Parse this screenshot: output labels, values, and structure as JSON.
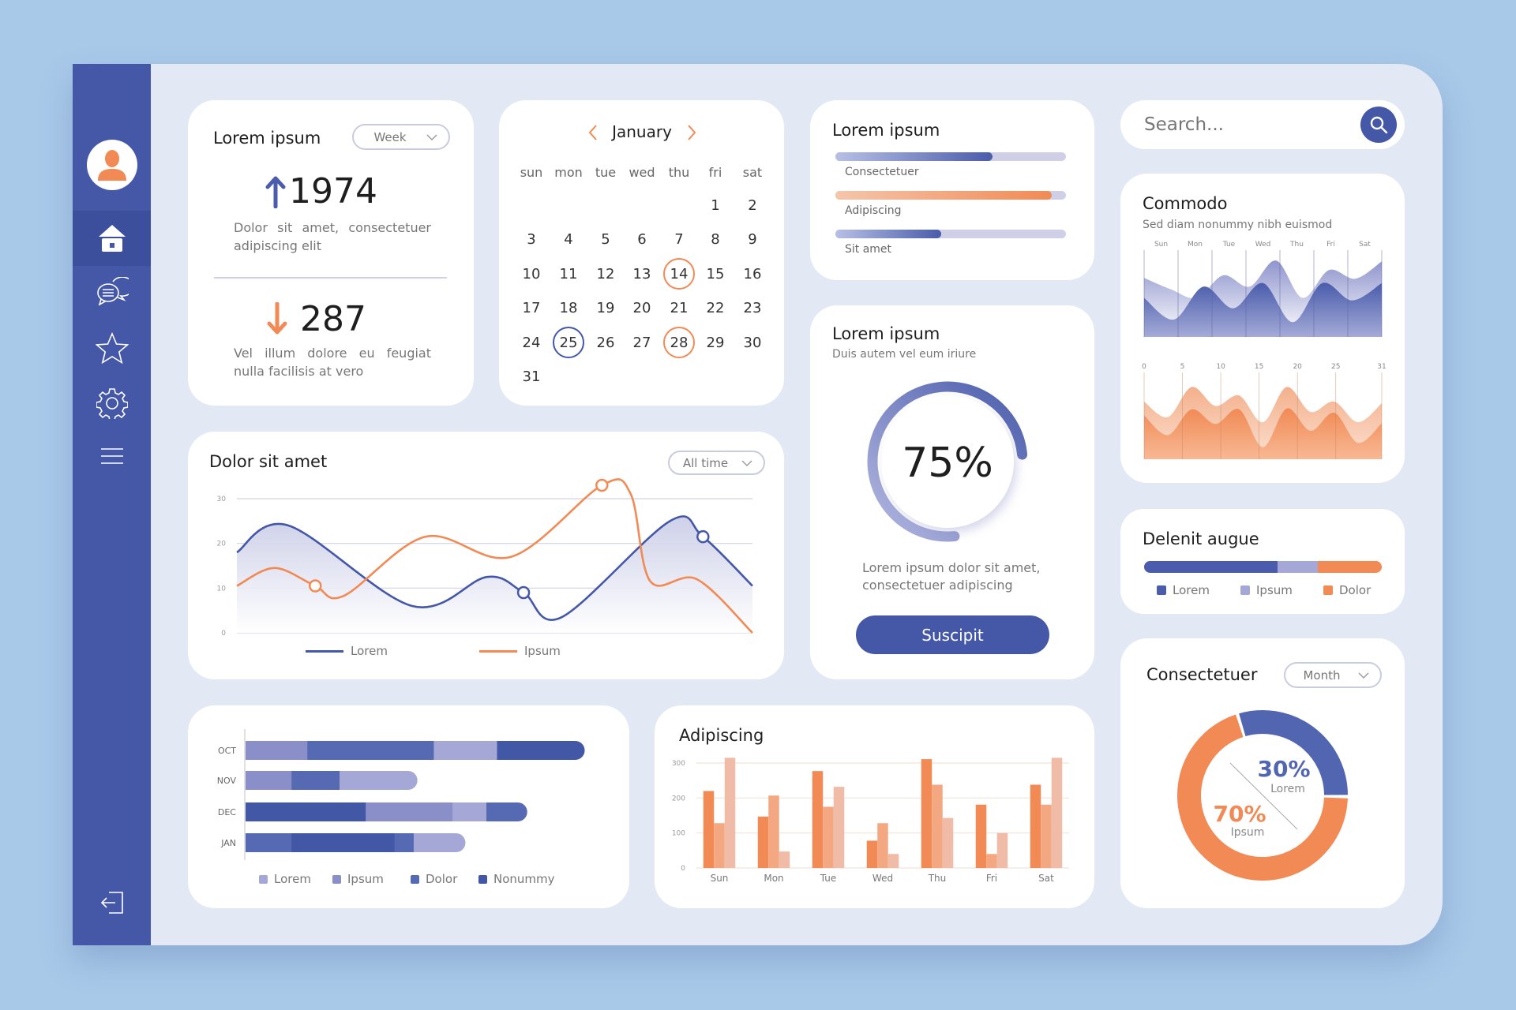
{
  "colors": {
    "primary": "#4558a7",
    "accent": "#f18a55",
    "background": "#a9c9e9",
    "panel": "#e2e8f4"
  },
  "sidebar": {
    "items": [
      {
        "name": "home",
        "icon": "home-icon",
        "active": true
      },
      {
        "name": "messages",
        "icon": "chat-icon"
      },
      {
        "name": "favorites",
        "icon": "star-icon"
      },
      {
        "name": "settings",
        "icon": "gear-icon"
      },
      {
        "name": "menu",
        "icon": "menu-icon"
      }
    ],
    "logout_icon": "logout-icon",
    "avatar_icon": "user-avatar-icon"
  },
  "stats_card": {
    "title": "Lorem ipsum",
    "dropdown": "Week",
    "up": {
      "value": "1974",
      "text": "Dolor sit amet, consectetuer adipiscing elit",
      "icon": "arrow-up-icon"
    },
    "down": {
      "value": "287",
      "text": "Vel illum dolore eu feugiat nulla facilisis at vero",
      "icon": "arrow-down-icon"
    }
  },
  "calendar": {
    "month": "January",
    "weekdays": [
      "sun",
      "mon",
      "tue",
      "wed",
      "thu",
      "fri",
      "sat"
    ],
    "weeks": [
      [
        null,
        null,
        null,
        null,
        null,
        1,
        2
      ],
      [
        3,
        4,
        5,
        6,
        7,
        8,
        9
      ],
      [
        10,
        11,
        12,
        13,
        14,
        15,
        16
      ],
      [
        17,
        18,
        19,
        20,
        21,
        22,
        23
      ],
      [
        24,
        25,
        26,
        27,
        28,
        29,
        30
      ],
      [
        31,
        null,
        null,
        null,
        null,
        null,
        null
      ]
    ],
    "highlighted": [
      {
        "day": 14,
        "color": "#f18a55"
      },
      {
        "day": 25,
        "color": "#4558a7"
      },
      {
        "day": 28,
        "color": "#f18a55"
      }
    ]
  },
  "progress_card": {
    "title": "Lorem ipsum",
    "items": [
      {
        "label": "Consectetuer",
        "value": 68,
        "from": "#b7c0e4",
        "to": "#4a5cab"
      },
      {
        "label": "Adipiscing",
        "value": 94,
        "from": "#f5c6ab",
        "to": "#f18a55"
      },
      {
        "label": "Sit amet",
        "value": 46,
        "from": "#b7c0e4",
        "to": "#4a5cab"
      }
    ]
  },
  "search": {
    "placeholder": "Search..."
  },
  "commodo": {
    "title": "Commodo",
    "subtitle": "Sed diam nonummy nibh euismod",
    "top_labels": [
      "Sun",
      "Mon",
      "Tue",
      "Wed",
      "Thu",
      "Fri",
      "Sat"
    ],
    "top_back": [
      68,
      55,
      45,
      71,
      58,
      88,
      45,
      77,
      67,
      87
    ],
    "top_front": [
      45,
      20,
      58,
      33,
      62,
      17,
      62,
      42,
      62
    ],
    "bottom_labels": [
      "0",
      "5",
      "10",
      "15",
      "20",
      "25",
      "31"
    ],
    "bottom_back": [
      67,
      49,
      84,
      62,
      74,
      43,
      84,
      55,
      67,
      43,
      65
    ],
    "bottom_front": [
      51,
      28,
      58,
      41,
      58,
      14,
      59,
      33,
      54,
      19,
      42
    ]
  },
  "line_chart": {
    "title": "Dolor sit amet",
    "dropdown": "All time",
    "chart_data": {
      "type": "line",
      "ylim": [
        0,
        30
      ],
      "yticks": [
        "0",
        "10",
        "20",
        "30"
      ],
      "grid": true,
      "legend": "bottom",
      "series": [
        {
          "name": "Lorem",
          "color": "#4558a7",
          "points": [
            [
              0,
              18
            ],
            [
              10,
              24
            ],
            [
              34,
              6
            ],
            [
              48.5,
              12.5
            ],
            [
              55.6,
              9
            ],
            [
              63,
              3.5
            ],
            [
              84,
              25
            ],
            [
              90.4,
              21.5
            ],
            [
              100,
              10.5
            ]
          ],
          "markers": [
            4,
            7
          ]
        },
        {
          "name": "Ipsum",
          "color": "#f18a55",
          "points": [
            [
              0,
              10.5
            ],
            [
              7.3,
              14.5
            ],
            [
              15.2,
              10.5
            ],
            [
              20.8,
              8.3
            ],
            [
              36.6,
              21.5
            ],
            [
              53.2,
              17
            ],
            [
              70.8,
              33
            ],
            [
              76.4,
              31
            ],
            [
              80.2,
              11.5
            ],
            [
              89.2,
              12
            ],
            [
              100,
              0
            ]
          ],
          "markers": [
            2,
            6
          ]
        }
      ]
    }
  },
  "gauge_card": {
    "title": "Lorem ipsum",
    "subtitle": "Duis autem vel eum iriure",
    "value": 75,
    "value_label": "75%",
    "text": "Lorem ipsum dolor sit amet, consectetuer adipiscing",
    "button": "Suscipit"
  },
  "delenit": {
    "title": "Delenit augue",
    "segments": [
      {
        "name": "Lorem",
        "value": 56,
        "color": "#4a5cab"
      },
      {
        "name": "Ipsum",
        "value": 17,
        "color": "#a5a8d6"
      },
      {
        "name": "Dolor",
        "value": 27,
        "color": "#f18a55"
      }
    ]
  },
  "donut_card": {
    "title": "Consectetuer",
    "dropdown": "Month",
    "chart_data": {
      "type": "pie",
      "slices": [
        {
          "name": "Lorem",
          "value": 30,
          "label": "30%",
          "color": "#5165b0"
        },
        {
          "name": "Ipsum",
          "value": 70,
          "label": "70%",
          "color": "#f18a55"
        }
      ]
    }
  },
  "hbar_chart": {
    "chart_data": {
      "type": "bar",
      "orientation": "horizontal",
      "stacked": true,
      "categories": [
        "OCT",
        "NOV",
        "DEC",
        "JAN"
      ],
      "legend": [
        {
          "name": "Lorem",
          "color": "#a5a8d6"
        },
        {
          "name": "Ipsum",
          "color": "#8a8fc9"
        },
        {
          "name": "Dolor",
          "color": "#5669b3"
        },
        {
          "name": "Nonummy",
          "color": "#4257a5"
        }
      ],
      "rows": [
        [
          {
            "series": "Ipsum",
            "value": 21.5
          },
          {
            "series": "Dolor",
            "value": 44
          },
          {
            "series": "Lorem",
            "value": 22
          },
          {
            "series": "Nonummy",
            "value": 30.5
          }
        ],
        [
          {
            "series": "Ipsum",
            "value": 16
          },
          {
            "series": "Dolor",
            "value": 16.7
          },
          {
            "series": "Lorem",
            "value": 27.1
          }
        ],
        [
          {
            "series": "Nonummy",
            "value": 41.8
          },
          {
            "series": "Ipsum",
            "value": 30.2
          },
          {
            "series": "Lorem",
            "value": 11.8
          },
          {
            "series": "Dolor",
            "value": 14.2
          }
        ],
        [
          {
            "series": "Dolor",
            "value": 16
          },
          {
            "series": "Nonummy",
            "value": 35.8
          },
          {
            "series": "Dolor",
            "value": 6.7
          },
          {
            "series": "Lorem",
            "value": 18
          }
        ]
      ]
    }
  },
  "bar_chart": {
    "title": "Adipiscing",
    "chart_data": {
      "type": "bar",
      "categories": [
        "Sun",
        "Mon",
        "Tue",
        "Wed",
        "Thu",
        "Fri",
        "Sat"
      ],
      "ylim": [
        0,
        300
      ],
      "yticks": [
        "0",
        "100",
        "200",
        "300"
      ],
      "grid": true,
      "series": [
        {
          "color": "#f18a55",
          "values": [
            220,
            147,
            277,
            78,
            311,
            181,
            238
          ]
        },
        {
          "color": "#f4a882",
          "values": [
            128,
            207,
            175,
            128,
            238,
            40,
            181
          ]
        },
        {
          "color": "#f0bba7",
          "values": [
            315,
            47,
            232,
            40,
            143,
            100,
            315
          ]
        }
      ]
    }
  }
}
